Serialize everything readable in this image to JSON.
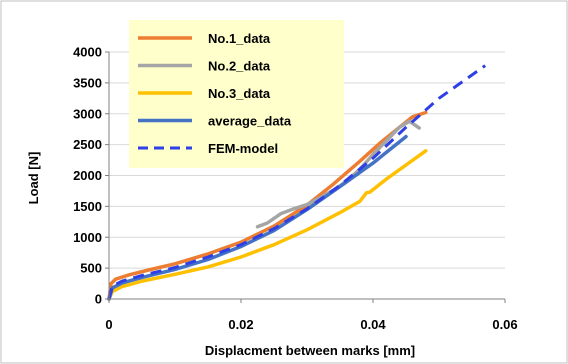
{
  "chart_data": {
    "type": "line",
    "xlabel": "Displacment between marks [mm]",
    "ylabel": "Load [N]",
    "xlim": [
      0,
      0.06
    ],
    "ylim": [
      0,
      4000
    ],
    "x_ticks": [
      0,
      0.02,
      0.04,
      0.06
    ],
    "x_tick_labels": [
      "0",
      "0.02",
      "0.04",
      "0.06"
    ],
    "y_ticks": [
      0,
      500,
      1000,
      1500,
      2000,
      2500,
      3000,
      3500,
      4000
    ],
    "y_tick_labels": [
      "0",
      "500",
      "1000",
      "1500",
      "2000",
      "2500",
      "3000",
      "3500",
      "4000"
    ],
    "grid": "horizontal",
    "legend_position": "top-left",
    "series": [
      {
        "name": "No.1_data",
        "color": "#ED7D31",
        "style": "solid",
        "x": [
          0,
          0.0003,
          0.001,
          0.003,
          0.006,
          0.01,
          0.015,
          0.02,
          0.025,
          0.03,
          0.034,
          0.038,
          0.041,
          0.044,
          0.046,
          0.048
        ],
        "y": [
          0,
          250,
          320,
          390,
          470,
          570,
          730,
          920,
          1180,
          1520,
          1860,
          2230,
          2520,
          2780,
          2950,
          3020
        ]
      },
      {
        "name": "No.2_data",
        "color": "#A5A5A5",
        "style": "solid",
        "x": [
          0.0225,
          0.024,
          0.026,
          0.028,
          0.03,
          0.032,
          0.034,
          0.036,
          0.038,
          0.04,
          0.042,
          0.044,
          0.0455,
          0.047
        ],
        "y": [
          1170,
          1230,
          1380,
          1460,
          1530,
          1640,
          1760,
          1910,
          2100,
          2340,
          2560,
          2780,
          2880,
          2770
        ]
      },
      {
        "name": "No.3_data",
        "color": "#FFC000",
        "style": "solid",
        "x": [
          0,
          0.0005,
          0.002,
          0.005,
          0.01,
          0.015,
          0.02,
          0.025,
          0.03,
          0.035,
          0.038,
          0.039,
          0.0395,
          0.042,
          0.045,
          0.048
        ],
        "y": [
          0,
          120,
          200,
          290,
          400,
          520,
          680,
          880,
          1120,
          1400,
          1580,
          1720,
          1730,
          1940,
          2170,
          2400
        ]
      },
      {
        "name": "average_data",
        "color": "#4472C4",
        "style": "solid",
        "x": [
          0,
          0.0005,
          0.002,
          0.005,
          0.01,
          0.015,
          0.02,
          0.025,
          0.03,
          0.035,
          0.04,
          0.045
        ],
        "y": [
          0,
          180,
          260,
          350,
          480,
          640,
          850,
          1110,
          1450,
          1820,
          2200,
          2630
        ]
      },
      {
        "name": "FEM-model",
        "color": "#2F3FE6",
        "style": "dashed",
        "x": [
          0,
          0.0005,
          0.002,
          0.005,
          0.01,
          0.015,
          0.02,
          0.025,
          0.03,
          0.035,
          0.04,
          0.045,
          0.05,
          0.057
        ],
        "y": [
          0,
          210,
          290,
          380,
          510,
          680,
          880,
          1140,
          1460,
          1840,
          2280,
          2780,
          3250,
          3780
        ]
      }
    ]
  }
}
